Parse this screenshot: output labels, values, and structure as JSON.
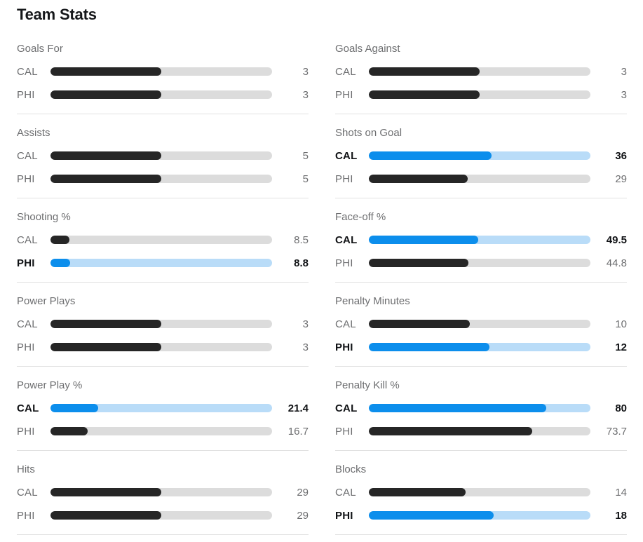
{
  "title": "Team Stats",
  "colors": {
    "bar_dark": "#262626",
    "track_gray": "#dcdcdc",
    "bar_blue": "#0c8eec",
    "track_blue": "#b9dcf8",
    "text_gray": "#6d6e70",
    "text_dark": "#101215",
    "divider": "#e1e1e1"
  },
  "columns": [
    {
      "groups": [
        {
          "name": "Goals For",
          "rows": [
            {
              "team": "CAL",
              "value": "3",
              "fill": 50,
              "highlight": false
            },
            {
              "team": "PHI",
              "value": "3",
              "fill": 50,
              "highlight": false
            }
          ]
        },
        {
          "name": "Assists",
          "rows": [
            {
              "team": "CAL",
              "value": "5",
              "fill": 50,
              "highlight": false
            },
            {
              "team": "PHI",
              "value": "5",
              "fill": 50,
              "highlight": false
            }
          ]
        },
        {
          "name": "Shooting %",
          "rows": [
            {
              "team": "CAL",
              "value": "8.5",
              "fill": 8.5,
              "highlight": false
            },
            {
              "team": "PHI",
              "value": "8.8",
              "fill": 8.8,
              "highlight": true
            }
          ]
        },
        {
          "name": "Power Plays",
          "rows": [
            {
              "team": "CAL",
              "value": "3",
              "fill": 50,
              "highlight": false
            },
            {
              "team": "PHI",
              "value": "3",
              "fill": 50,
              "highlight": false
            }
          ]
        },
        {
          "name": "Power Play %",
          "rows": [
            {
              "team": "CAL",
              "value": "21.4",
              "fill": 21.4,
              "highlight": true
            },
            {
              "team": "PHI",
              "value": "16.7",
              "fill": 16.7,
              "highlight": false
            }
          ]
        },
        {
          "name": "Hits",
          "rows": [
            {
              "team": "CAL",
              "value": "29",
              "fill": 50,
              "highlight": false
            },
            {
              "team": "PHI",
              "value": "29",
              "fill": 50,
              "highlight": false
            }
          ]
        }
      ]
    },
    {
      "groups": [
        {
          "name": "Goals Against",
          "rows": [
            {
              "team": "CAL",
              "value": "3",
              "fill": 50,
              "highlight": false
            },
            {
              "team": "PHI",
              "value": "3",
              "fill": 50,
              "highlight": false
            }
          ]
        },
        {
          "name": "Shots on Goal",
          "rows": [
            {
              "team": "CAL",
              "value": "36",
              "fill": 55.4,
              "highlight": true
            },
            {
              "team": "PHI",
              "value": "29",
              "fill": 44.6,
              "highlight": false
            }
          ]
        },
        {
          "name": "Face-off %",
          "rows": [
            {
              "team": "CAL",
              "value": "49.5",
              "fill": 49.5,
              "highlight": true
            },
            {
              "team": "PHI",
              "value": "44.8",
              "fill": 44.8,
              "highlight": false
            }
          ]
        },
        {
          "name": "Penalty Minutes",
          "rows": [
            {
              "team": "CAL",
              "value": "10",
              "fill": 45.5,
              "highlight": false
            },
            {
              "team": "PHI",
              "value": "12",
              "fill": 54.5,
              "highlight": true
            }
          ]
        },
        {
          "name": "Penalty Kill %",
          "rows": [
            {
              "team": "CAL",
              "value": "80",
              "fill": 80,
              "highlight": true
            },
            {
              "team": "PHI",
              "value": "73.7",
              "fill": 73.7,
              "highlight": false
            }
          ]
        },
        {
          "name": "Blocks",
          "rows": [
            {
              "team": "CAL",
              "value": "14",
              "fill": 43.8,
              "highlight": false
            },
            {
              "team": "PHI",
              "value": "18",
              "fill": 56.3,
              "highlight": true
            }
          ]
        }
      ]
    }
  ],
  "chart_data": {
    "type": "bar",
    "orientation": "horizontal",
    "title": "Team Stats",
    "teams": [
      "CAL",
      "PHI"
    ],
    "highlight_color": "#0c8eec",
    "stats": [
      {
        "label": "Goals For",
        "CAL": 3,
        "PHI": 3,
        "leader": null
      },
      {
        "label": "Goals Against",
        "CAL": 3,
        "PHI": 3,
        "leader": null
      },
      {
        "label": "Assists",
        "CAL": 5,
        "PHI": 5,
        "leader": null
      },
      {
        "label": "Shots on Goal",
        "CAL": 36,
        "PHI": 29,
        "leader": "CAL"
      },
      {
        "label": "Shooting %",
        "CAL": 8.5,
        "PHI": 8.8,
        "leader": "PHI"
      },
      {
        "label": "Face-off %",
        "CAL": 49.5,
        "PHI": 44.8,
        "leader": "CAL"
      },
      {
        "label": "Power Plays",
        "CAL": 3,
        "PHI": 3,
        "leader": null
      },
      {
        "label": "Penalty Minutes",
        "CAL": 10,
        "PHI": 12,
        "leader": "PHI"
      },
      {
        "label": "Power Play %",
        "CAL": 21.4,
        "PHI": 16.7,
        "leader": "CAL"
      },
      {
        "label": "Penalty Kill %",
        "CAL": 80,
        "PHI": 73.7,
        "leader": "CAL"
      },
      {
        "label": "Hits",
        "CAL": 29,
        "PHI": 29,
        "leader": null
      },
      {
        "label": "Blocks",
        "CAL": 14,
        "PHI": 18,
        "leader": "PHI"
      }
    ],
    "bar_scale_rule": "percentage stats fill = value/100 of track; counting stats fill = value/(CAL+PHI)"
  }
}
